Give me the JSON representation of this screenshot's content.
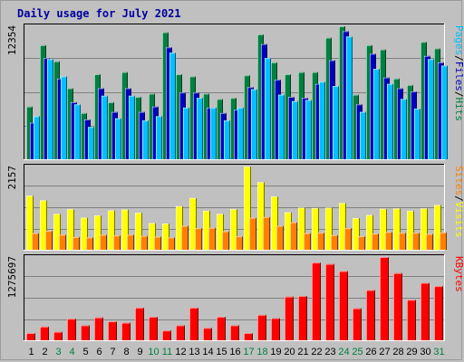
{
  "title": "Daily usage for July 2021",
  "colors": {
    "hits": "#008040",
    "files": "#0000c0",
    "pages": "#00c0ff",
    "visits": "#ffff00",
    "sites": "#ff8000",
    "kbytes": "#ff0000",
    "background": "#c0c0c0",
    "title": "#0000a0",
    "weekend": "#008040",
    "weekday": "#000000"
  },
  "chart_data": [
    {
      "type": "bar",
      "panel": "hits-files-pages",
      "title": "Daily usage for July 2021",
      "max_label": "12354",
      "ylim": [
        0,
        12354
      ],
      "categories": [
        "1",
        "2",
        "3",
        "4",
        "5",
        "6",
        "7",
        "8",
        "9",
        "10",
        "11",
        "12",
        "13",
        "14",
        "15",
        "16",
        "17",
        "18",
        "19",
        "20",
        "21",
        "22",
        "23",
        "24",
        "25",
        "26",
        "27",
        "28",
        "29",
        "30",
        "31"
      ],
      "weekend_days": [
        "3",
        "4",
        "10",
        "11",
        "17",
        "18",
        "24",
        "25",
        "31"
      ],
      "legend": [
        "Pages",
        "/",
        "Files",
        "/",
        "Hits"
      ],
      "series": [
        {
          "name": "Hits",
          "color_key": "hits",
          "values": [
            4900,
            10600,
            9100,
            6600,
            4300,
            7900,
            5300,
            8100,
            5800,
            6100,
            11800,
            7900,
            7700,
            6100,
            5600,
            5700,
            7800,
            11600,
            9000,
            7900,
            8100,
            8100,
            11300,
            12354,
            6000,
            10600,
            10200,
            7500,
            6900,
            10900,
            10300
          ]
        },
        {
          "name": "Files",
          "color_key": "files",
          "values": [
            3400,
            9400,
            7500,
            5300,
            3700,
            6600,
            4400,
            6600,
            4400,
            4900,
            10400,
            6200,
            6200,
            4800,
            4300,
            4600,
            6700,
            10700,
            7400,
            5800,
            5700,
            7000,
            9200,
            11900,
            5100,
            9800,
            7600,
            6600,
            6300,
            9600,
            9000
          ]
        },
        {
          "name": "Pages",
          "color_key": "pages",
          "values": [
            4000,
            9300,
            7700,
            5100,
            3000,
            5900,
            3800,
            5900,
            3600,
            4000,
            9900,
            4800,
            5700,
            4800,
            3600,
            4800,
            6500,
            9400,
            6000,
            5400,
            5500,
            7200,
            6800,
            11400,
            4400,
            8400,
            7000,
            5600,
            4700,
            9300,
            8700
          ]
        }
      ]
    },
    {
      "type": "bar",
      "panel": "visits-sites",
      "max_label": "2157",
      "ylim": [
        0,
        2157
      ],
      "legend": [
        "Sites",
        "/",
        "Visits"
      ],
      "series": [
        {
          "name": "Visits",
          "color_key": "visits",
          "values": [
            1400,
            1280,
            930,
            1050,
            830,
            890,
            1020,
            1040,
            960,
            690,
            680,
            1130,
            1340,
            1010,
            930,
            1050,
            2157,
            1750,
            1380,
            970,
            1090,
            1080,
            1090,
            1210,
            820,
            900,
            1060,
            1070,
            1010,
            1070,
            1160
          ]
        },
        {
          "name": "Sites",
          "color_key": "sites",
          "values": [
            430,
            490,
            390,
            330,
            320,
            390,
            370,
            390,
            360,
            340,
            320,
            620,
            560,
            570,
            480,
            350,
            830,
            850,
            620,
            710,
            430,
            440,
            380,
            560,
            350,
            420,
            460,
            440,
            440,
            410,
            450
          ]
        }
      ]
    },
    {
      "type": "bar",
      "panel": "kbytes",
      "max_label": "1275697",
      "ylim": [
        0,
        1275697
      ],
      "legend": [
        "KBytes"
      ],
      "series": [
        {
          "name": "KBytes",
          "color_key": "kbytes",
          "values": [
            110000,
            210000,
            130000,
            330000,
            230000,
            350000,
            290000,
            270000,
            500000,
            360000,
            150000,
            230000,
            500000,
            190000,
            360000,
            230000,
            110000,
            390000,
            340000,
            670000,
            680000,
            1190000,
            1170000,
            1060000,
            490000,
            770000,
            1275697,
            1030000,
            620000,
            880000,
            830000
          ]
        }
      ]
    }
  ]
}
